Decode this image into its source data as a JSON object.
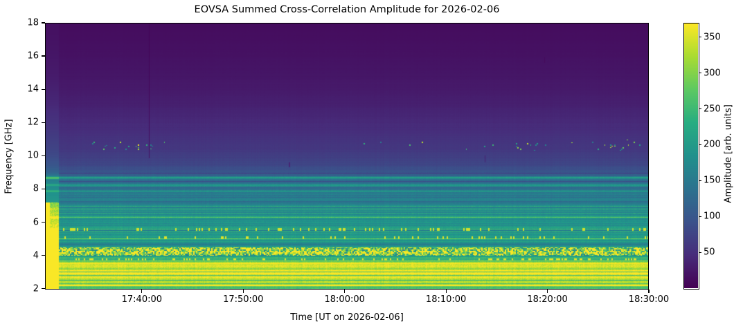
{
  "chart_data": {
    "type": "heatmap",
    "title": "EOVSA Summed Cross-Correlation Amplitude for 2026-02-06",
    "xlabel": "Time [UT on 2026-02-06]",
    "ylabel": "Frequency [GHz]",
    "colorbar_label": "Amplitude [arb. units]",
    "colormap": "viridis",
    "legend_position": "right-colorbar",
    "grid": false,
    "x_range_ut": [
      "17:30:30",
      "18:30:00"
    ],
    "x_duration_min": 59.55,
    "x_ticks": [
      {
        "label": "17:40:00",
        "t_min": 9.55
      },
      {
        "label": "17:50:00",
        "t_min": 19.55
      },
      {
        "label": "18:00:00",
        "t_min": 29.55
      },
      {
        "label": "18:10:00",
        "t_min": 39.55
      },
      {
        "label": "18:20:00",
        "t_min": 49.55
      },
      {
        "label": "18:30:00",
        "t_min": 59.55
      }
    ],
    "freq_range_ghz": [
      1.95,
      18
    ],
    "y_ticks": [
      2,
      4,
      6,
      8,
      10,
      12,
      14,
      16,
      18
    ],
    "amp_range": [
      0,
      370
    ],
    "colorbar_ticks": [
      50,
      100,
      150,
      200,
      250,
      300,
      350
    ],
    "viridis_stops": [
      [
        0.0,
        "#440154"
      ],
      [
        0.125,
        "#472d7b"
      ],
      [
        0.25,
        "#3b528b"
      ],
      [
        0.375,
        "#2c728e"
      ],
      [
        0.5,
        "#21918c"
      ],
      [
        0.625,
        "#27ad81"
      ],
      [
        0.75,
        "#5ec962"
      ],
      [
        0.875,
        "#aadc32"
      ],
      [
        1.0,
        "#fde725"
      ]
    ],
    "spectral_profile_freq_amp": [
      [
        18.0,
        12
      ],
      [
        16.5,
        16
      ],
      [
        14.8,
        22
      ],
      [
        13.2,
        32
      ],
      [
        11.5,
        48
      ],
      [
        10.9,
        55
      ],
      [
        10.4,
        60
      ],
      [
        10.0,
        66
      ],
      [
        9.4,
        80
      ],
      [
        9.0,
        95
      ],
      [
        8.78,
        118
      ],
      [
        8.66,
        235
      ],
      [
        8.55,
        125
      ],
      [
        8.3,
        140
      ],
      [
        8.24,
        195
      ],
      [
        8.15,
        140
      ],
      [
        7.95,
        146
      ],
      [
        7.87,
        205
      ],
      [
        7.77,
        148
      ],
      [
        7.5,
        152
      ],
      [
        7.1,
        158
      ],
      [
        6.87,
        164
      ],
      [
        6.8,
        195
      ],
      [
        6.72,
        168
      ],
      [
        6.37,
        176
      ],
      [
        6.28,
        252
      ],
      [
        6.18,
        178
      ],
      [
        6.0,
        182
      ],
      [
        5.7,
        192
      ],
      [
        5.55,
        205
      ],
      [
        5.4,
        196
      ],
      [
        5.25,
        194
      ],
      [
        5.05,
        208
      ],
      [
        4.9,
        196
      ],
      [
        4.75,
        190
      ],
      [
        4.6,
        186
      ],
      [
        4.5,
        210
      ],
      [
        4.2,
        230
      ],
      [
        4.0,
        230
      ],
      [
        3.9,
        228
      ],
      [
        3.75,
        238
      ],
      [
        3.66,
        260
      ],
      [
        3.6,
        320
      ],
      [
        3.45,
        352
      ],
      [
        3.3,
        362
      ],
      [
        3.17,
        300
      ],
      [
        3.05,
        358
      ],
      [
        2.8,
        365
      ],
      [
        2.62,
        338
      ],
      [
        2.5,
        300
      ],
      [
        2.38,
        352
      ],
      [
        2.25,
        330
      ],
      [
        2.15,
        290
      ],
      [
        2.05,
        258
      ],
      [
        1.95,
        238
      ]
    ],
    "banding": {
      "high_freq_above_ghz": 9,
      "high_amp_jitter": 0.1,
      "mid_amp_jitter": 0.26,
      "yellow_zone_below_ghz": 3.6,
      "yellow_amp_jitter": 0.14,
      "bright_row_prob": 0.08,
      "bright_row_mult": 1.35,
      "dark_row_prob": 0.07,
      "dark_row_mult": 0.72,
      "column_jitter": 0.05,
      "cell_noise_mid": 0.09,
      "cell_noise_high": 0.04
    },
    "features": {
      "initial_saturation": {
        "t_end_min": 1.3,
        "hard_t_end_min": 0.45,
        "full_sat_below_ghz": 5.65,
        "boost_below_ghz": 7.2,
        "boost_mult": 1.9,
        "high_freq_mult": 1.25,
        "sat_amp": 368
      },
      "speckle_band_10ghz": {
        "freq_center": 10.62,
        "freq_halfwidth": 0.35,
        "amp_min": 140,
        "amp_span": 230,
        "clusters_t_min_density": [
          [
            3.9,
            5.3,
            0.04
          ],
          [
            5.6,
            8.4,
            0.05
          ],
          [
            8.9,
            11.8,
            0.06
          ],
          [
            31.4,
            33.6,
            0.03
          ],
          [
            35.3,
            38.6,
            0.03
          ],
          [
            39.3,
            41.6,
            0.025
          ],
          [
            42.4,
            44.6,
            0.03
          ],
          [
            46.0,
            47.7,
            0.07
          ],
          [
            47.9,
            50.4,
            0.07
          ],
          [
            51.2,
            53.3,
            0.05
          ],
          [
            53.7,
            55.3,
            0.055
          ],
          [
            55.6,
            57.6,
            0.08
          ],
          [
            57.8,
            59.6,
            0.07
          ]
        ]
      },
      "noisy_band": {
        "freq_range": [
          3.96,
          4.48
        ],
        "amp_min": 150,
        "amp_span": 200,
        "sat_prob": 0.3,
        "sat_amp": 368
      },
      "dotted_rows": [
        {
          "freq_range": [
            5.46,
            5.62
          ],
          "prob": 0.16,
          "amp": 346
        },
        {
          "freq_range": [
            4.96,
            5.14
          ],
          "prob": 0.09,
          "amp": 352
        },
        {
          "freq_range": [
            3.66,
            3.8
          ],
          "prob": 0.2,
          "amp": 352
        }
      ],
      "vertical_artifacts": [
        {
          "t_min": 10.24,
          "freq_range": [
            9.85,
            18.0
          ],
          "mult": 0.3
        },
        {
          "t_min": 7.15,
          "freq_range": [
            1.95,
            18.0
          ],
          "mult": 1.06
        },
        {
          "t_min": 43.4,
          "freq_range": [
            9.6,
            10.0
          ],
          "mult": 0.45
        },
        {
          "t_min": 49.3,
          "freq_range": [
            15.6,
            15.95
          ],
          "mult": 0.5
        },
        {
          "t_min": 24.1,
          "freq_range": [
            9.3,
            9.6
          ],
          "mult": 0.5
        }
      ]
    }
  }
}
